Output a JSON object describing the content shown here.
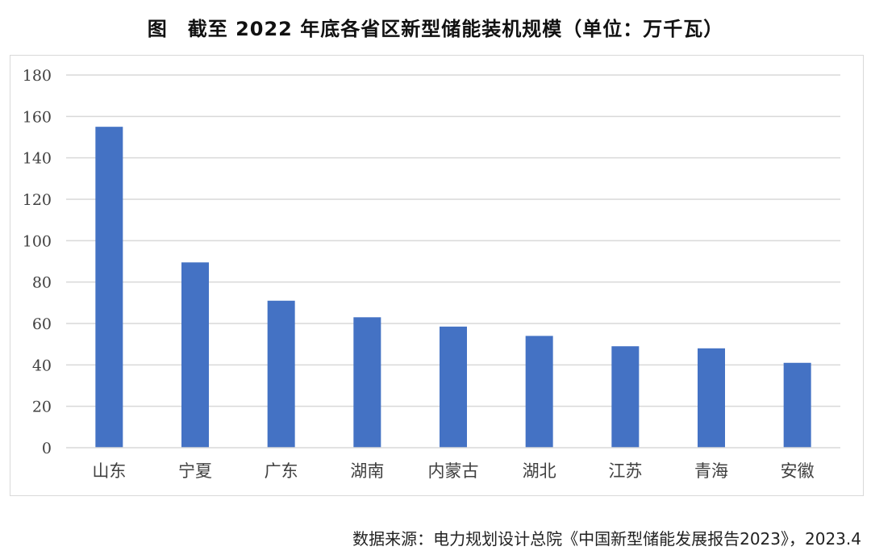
{
  "chart_data": {
    "type": "bar",
    "title": "图　截至 2022 年底各省区新型储能装机规模（单位：万千瓦）",
    "xlabel": "",
    "ylabel": "",
    "categories": [
      "山东",
      "宁夏",
      "广东",
      "湖南",
      "内蒙古",
      "湖北",
      "江苏",
      "青海",
      "安徽"
    ],
    "values": [
      155,
      89.5,
      71,
      63,
      58.5,
      54,
      49,
      48,
      41
    ],
    "ylim": [
      0,
      180
    ],
    "yticks": [
      "0",
      "20",
      "40",
      "60",
      "80",
      "100",
      "120",
      "140",
      "160",
      "180"
    ],
    "grid": true,
    "legend": "none",
    "bar_color": "#4472C4",
    "grid_color": "#d9d9d9"
  },
  "source": "数据来源：电力规划设计总院《中国新型储能发展报告2023》，2023.4"
}
